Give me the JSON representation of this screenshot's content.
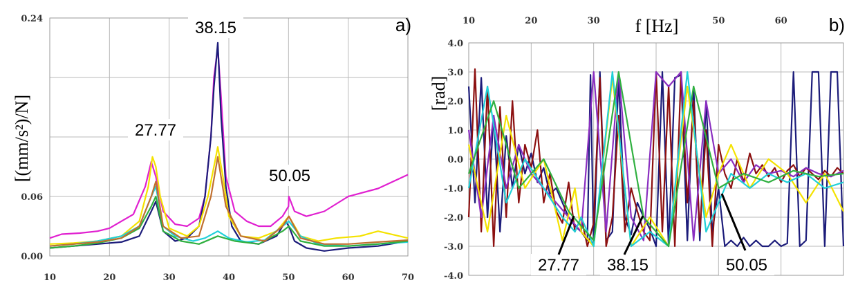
{
  "chart_data": [
    {
      "type": "line",
      "panel_label": "a)",
      "ylabel": "[(mm/s²)/N]",
      "xlim": [
        10,
        70
      ],
      "ylim": [
        0,
        0.24
      ],
      "x_ticks": [
        "10",
        "20",
        "30",
        "40",
        "50",
        "60",
        "70"
      ],
      "y_ticks": [
        "0.00",
        "0.06",
        "0.24"
      ],
      "annotations": [
        {
          "text": "27.77",
          "x": 27.77
        },
        {
          "text": "38.15",
          "x": 38.15
        },
        {
          "text": "50.05",
          "x": 50.05
        }
      ],
      "series": [
        {
          "color": "#e020d0",
          "x": [
            10,
            12,
            15,
            18,
            20,
            22,
            24,
            26,
            27,
            27.77,
            29,
            31,
            33,
            35,
            36,
            37,
            37.5,
            38.15,
            38.7,
            39.5,
            41,
            43,
            45,
            47,
            49,
            50,
            50.05,
            51,
            53,
            56,
            60,
            65,
            70
          ],
          "y": [
            0.018,
            0.022,
            0.023,
            0.025,
            0.028,
            0.035,
            0.042,
            0.07,
            0.095,
            0.08,
            0.045,
            0.032,
            0.03,
            0.038,
            0.06,
            0.12,
            0.18,
            0.21,
            0.16,
            0.08,
            0.045,
            0.035,
            0.03,
            0.03,
            0.04,
            0.05,
            0.06,
            0.045,
            0.04,
            0.045,
            0.06,
            0.068,
            0.082
          ]
        },
        {
          "color": "#1c1c7a",
          "x": [
            10,
            14,
            18,
            22,
            25,
            27,
            27.77,
            29,
            31,
            33,
            35,
            36,
            37,
            37.5,
            38.15,
            38.7,
            39.5,
            40.5,
            42,
            45,
            48,
            49.5,
            50.05,
            51,
            53,
            56,
            60,
            65,
            70
          ],
          "y": [
            0.008,
            0.01,
            0.012,
            0.014,
            0.02,
            0.045,
            0.055,
            0.025,
            0.015,
            0.018,
            0.03,
            0.06,
            0.12,
            0.17,
            0.215,
            0.14,
            0.07,
            0.03,
            0.015,
            0.012,
            0.02,
            0.035,
            0.03,
            0.015,
            0.008,
            0.005,
            0.008,
            0.01,
            0.015
          ]
        },
        {
          "color": "#f4e200",
          "x": [
            10,
            14,
            18,
            22,
            25,
            26.5,
            27.2,
            27.77,
            28.5,
            30,
            33,
            35,
            36.5,
            37.5,
            38.15,
            39,
            40,
            42,
            45,
            48,
            50.05,
            52,
            55,
            58,
            62,
            65,
            70
          ],
          "y": [
            0.012,
            0.013,
            0.015,
            0.02,
            0.035,
            0.07,
            0.1,
            0.09,
            0.06,
            0.028,
            0.02,
            0.03,
            0.06,
            0.09,
            0.11,
            0.08,
            0.04,
            0.02,
            0.018,
            0.025,
            0.04,
            0.02,
            0.015,
            0.018,
            0.02,
            0.025,
            0.018
          ]
        },
        {
          "color": "#20d0d8",
          "x": [
            10,
            14,
            18,
            22,
            25,
            27,
            27.77,
            29,
            31,
            34,
            36,
            38.15,
            40,
            43,
            46,
            49,
            50.05,
            52,
            55,
            60,
            65,
            70
          ],
          "y": [
            0.01,
            0.012,
            0.015,
            0.02,
            0.03,
            0.06,
            0.07,
            0.03,
            0.02,
            0.015,
            0.018,
            0.025,
            0.018,
            0.014,
            0.016,
            0.03,
            0.035,
            0.02,
            0.012,
            0.01,
            0.012,
            0.014
          ]
        },
        {
          "color": "#30b040",
          "x": [
            10,
            14,
            18,
            22,
            25,
            27,
            27.77,
            29,
            32,
            35,
            38.15,
            41,
            45,
            49,
            50.05,
            52,
            56,
            60,
            65,
            70
          ],
          "y": [
            0.008,
            0.01,
            0.013,
            0.018,
            0.028,
            0.05,
            0.06,
            0.025,
            0.015,
            0.012,
            0.02,
            0.015,
            0.012,
            0.025,
            0.03,
            0.015,
            0.01,
            0.01,
            0.012,
            0.015
          ]
        },
        {
          "color": "#c07030",
          "x": [
            10,
            14,
            18,
            22,
            25,
            27,
            27.77,
            29,
            32,
            35,
            37,
            38.15,
            39.5,
            42,
            46,
            49,
            50.05,
            52,
            56,
            60,
            65,
            70
          ],
          "y": [
            0.01,
            0.012,
            0.014,
            0.018,
            0.03,
            0.06,
            0.075,
            0.03,
            0.018,
            0.02,
            0.06,
            0.1,
            0.05,
            0.02,
            0.015,
            0.03,
            0.04,
            0.018,
            0.012,
            0.012,
            0.014,
            0.016
          ]
        }
      ]
    },
    {
      "type": "line",
      "panel_label": "b)",
      "xlabel": "f [Hz]",
      "ylabel": "[rad]",
      "xlim": [
        10,
        70
      ],
      "ylim": [
        -4,
        4
      ],
      "x_ticks": [
        "10",
        "20",
        "30",
        "50",
        "60"
      ],
      "y_ticks": [
        "4.0",
        "3.0",
        "2.0",
        "1.0",
        "0.0",
        "-1.0",
        "-2.0",
        "-3.0",
        "-4.0"
      ],
      "annotations": [
        {
          "text": "27.77",
          "x": 27.77,
          "y": -2.2
        },
        {
          "text": "38.15",
          "x": 38.15,
          "y": -2.0
        },
        {
          "text": "50.05",
          "x": 50.05,
          "y": -1.0
        }
      ],
      "series": [
        {
          "color": "#1c1c7a",
          "x": [
            10,
            11,
            12,
            13,
            14,
            15,
            16,
            17,
            18,
            19,
            20,
            21,
            22,
            23,
            24,
            25,
            26,
            27,
            28,
            29,
            29.5,
            30,
            31,
            32,
            33,
            34,
            35,
            36,
            37,
            38,
            39,
            40,
            41,
            42,
            43,
            44,
            45,
            46,
            47,
            48,
            49,
            50,
            51,
            52,
            53,
            54,
            55,
            56,
            57,
            58,
            59,
            60,
            61,
            62,
            63,
            64,
            65,
            66,
            67,
            68,
            69,
            70
          ],
          "y": [
            2.5,
            -1.5,
            2.8,
            -2.0,
            1.5,
            -2.5,
            0.8,
            -1.0,
            0.5,
            -0.5,
            0.2,
            -0.8,
            -0.3,
            -1.2,
            -1.0,
            -1.5,
            -2.0,
            -2.3,
            -2.5,
            -2.8,
            2.9,
            -3.0,
            3.0,
            -2.8,
            -2.5,
            2.8,
            -2.0,
            -2.6,
            -1.5,
            -2.0,
            -2.4,
            -3.0,
            3.0,
            -3.0,
            2.8,
            2.9,
            -2.8,
            2.5,
            -2.8,
            2.0,
            -2.5,
            -1.0,
            -3.0,
            -2.8,
            -3.0,
            -2.7,
            -3.0,
            -2.8,
            -3.0,
            -3.0,
            -2.8,
            -3.0,
            -2.9,
            3.0,
            -3.0,
            -2.8,
            3.0,
            3.0,
            -3.0,
            3.0,
            3.0,
            -3.0
          ]
        },
        {
          "color": "#8c1010",
          "x": [
            10,
            11,
            12,
            13,
            14,
            15,
            16,
            17,
            18,
            19,
            20,
            21,
            22,
            23,
            24,
            25,
            26,
            27,
            28,
            29,
            30,
            31,
            32,
            33,
            34,
            35,
            36,
            37,
            38,
            39,
            40,
            41,
            42,
            43,
            44,
            45,
            46,
            47,
            48,
            49,
            50,
            51,
            52,
            53,
            54,
            55,
            56,
            57,
            58,
            59,
            60,
            61,
            62,
            63,
            64,
            65,
            66,
            67,
            68,
            69,
            70
          ],
          "y": [
            -2.0,
            3.1,
            -2.5,
            2.5,
            -3.0,
            1.8,
            -2.0,
            2.0,
            -1.5,
            0.5,
            -0.3,
            1.0,
            -1.5,
            -0.5,
            -1.8,
            -2.2,
            -0.8,
            -2.5,
            -2.0,
            -3.0,
            -2.2,
            2.8,
            -3.0,
            -2.0,
            1.5,
            -2.5,
            -1.0,
            -1.8,
            -2.5,
            -2.8,
            3.0,
            -2.5,
            2.5,
            -3.0,
            3.0,
            -1.5,
            2.0,
            -2.5,
            1.0,
            -3.0,
            0.5,
            -0.5,
            -1.0,
            0.0,
            -0.8,
            0.2,
            -0.5,
            -0.2,
            -0.6,
            -0.3,
            -0.8,
            -0.4,
            -0.2,
            -0.6,
            -0.3,
            -0.5,
            -0.7,
            -0.4,
            -0.6,
            -0.3,
            -0.5
          ]
        },
        {
          "color": "#8a2ec0",
          "x": [
            10,
            12,
            14,
            16,
            18,
            20,
            22,
            24,
            26,
            28,
            30,
            32,
            34,
            36,
            38,
            40,
            42,
            44,
            46,
            48,
            50,
            52,
            54,
            56,
            58,
            60,
            62,
            64,
            66,
            68,
            70
          ],
          "y": [
            1.0,
            -2.0,
            1.5,
            -1.0,
            0.5,
            -0.5,
            -1.0,
            -1.5,
            -2.0,
            -2.5,
            3.0,
            -2.5,
            3.0,
            -2.0,
            -2.8,
            3.0,
            2.5,
            3.0,
            -2.8,
            2.0,
            -0.5,
            0.0,
            -0.8,
            -0.2,
            -0.5,
            -0.4,
            -0.6,
            -0.3,
            -0.5,
            -0.6,
            -0.4
          ]
        },
        {
          "color": "#f4e200",
          "x": [
            10,
            13,
            16,
            19,
            22,
            25,
            27,
            28,
            30,
            33,
            36,
            39,
            42,
            45,
            48,
            50,
            52,
            55,
            58,
            61,
            64,
            67,
            70
          ],
          "y": [
            0.5,
            -2.5,
            1.5,
            -1.0,
            0.0,
            -2.8,
            -1.0,
            -2.5,
            -3.0,
            2.8,
            -3.0,
            -2.0,
            -3.0,
            2.5,
            -2.0,
            -0.5,
            0.5,
            -1.0,
            0.0,
            -0.5,
            -1.5,
            -0.5,
            -1.8
          ]
        },
        {
          "color": "#20d0d8",
          "x": [
            10,
            13,
            16,
            19,
            22,
            25,
            27,
            28,
            30,
            33,
            36,
            39,
            42,
            45,
            48,
            50,
            52,
            55,
            58,
            61,
            64,
            67,
            70
          ],
          "y": [
            -1.0,
            2.5,
            -1.5,
            0.0,
            -1.0,
            -2.0,
            -2.5,
            -2.0,
            -3.0,
            3.0,
            -3.0,
            -2.5,
            -3.0,
            3.0,
            -2.5,
            -1.5,
            -0.5,
            -1.0,
            -0.5,
            -0.8,
            -0.5,
            -1.0,
            -0.8
          ]
        },
        {
          "color": "#30b040",
          "x": [
            10,
            14,
            18,
            22,
            26,
            30,
            34,
            38,
            42,
            46,
            50,
            54,
            58,
            62,
            66,
            70
          ],
          "y": [
            -0.5,
            2.0,
            -1.0,
            0.0,
            -1.8,
            -2.8,
            3.0,
            -2.0,
            -3.0,
            2.5,
            -1.0,
            -0.5,
            -0.8,
            -0.4,
            -0.6,
            -0.5
          ]
        }
      ]
    }
  ]
}
